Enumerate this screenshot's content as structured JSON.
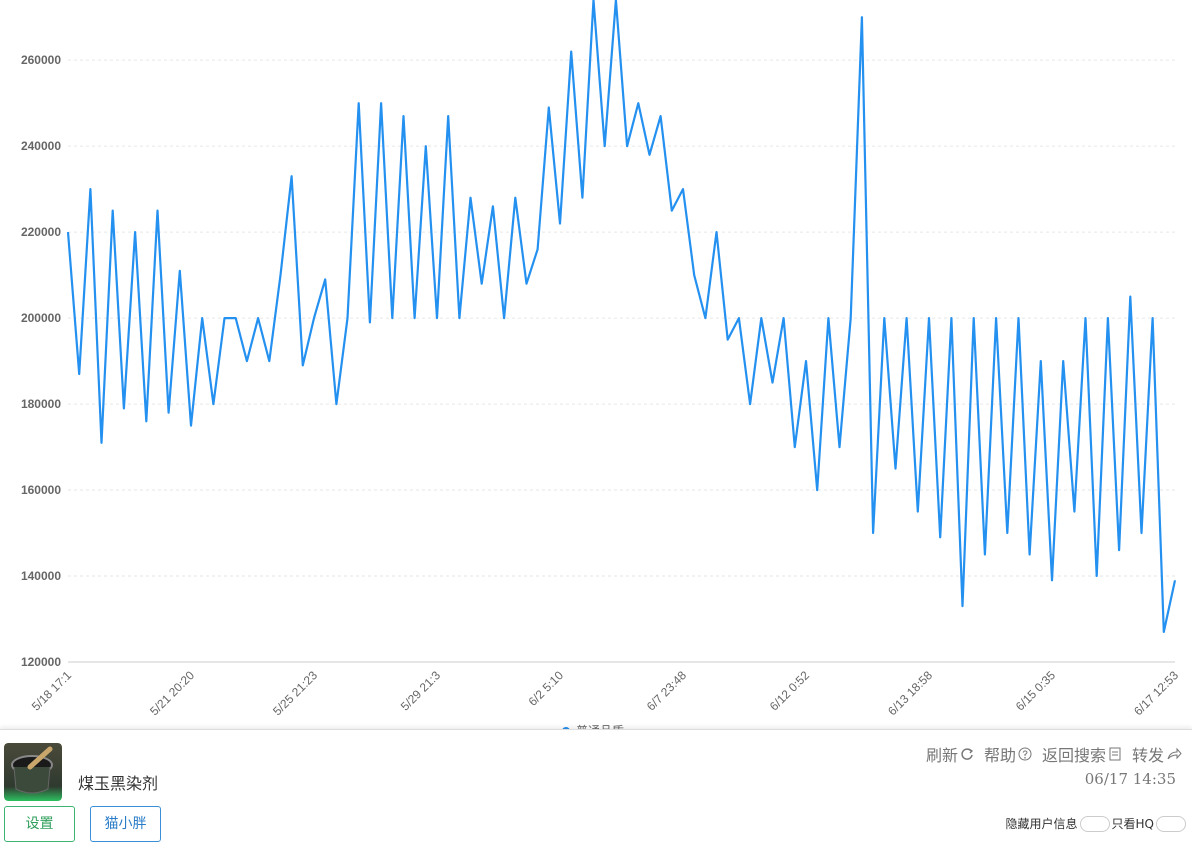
{
  "chart_data": {
    "type": "line",
    "categories": [
      "5/18 17:1",
      null,
      null,
      null,
      null,
      null,
      null,
      null,
      null,
      null,
      null,
      "5/21 20:20",
      null,
      null,
      null,
      null,
      null,
      null,
      null,
      null,
      null,
      null,
      "5/25 21:23",
      null,
      null,
      null,
      null,
      null,
      null,
      null,
      null,
      null,
      null,
      "5/29 21:3",
      null,
      null,
      null,
      null,
      null,
      null,
      null,
      null,
      null,
      null,
      "6/2 5:10",
      null,
      null,
      null,
      null,
      null,
      null,
      null,
      null,
      null,
      null,
      "6/7 23:48",
      null,
      null,
      null,
      null,
      null,
      null,
      null,
      null,
      null,
      null,
      "6/12 0:52",
      null,
      null,
      null,
      null,
      null,
      null,
      null,
      null,
      null,
      null,
      "6/13 18:58",
      null,
      null,
      null,
      null,
      null,
      null,
      null,
      null,
      null,
      null,
      "6/15 0:35",
      null,
      null,
      null,
      null,
      null,
      null,
      null,
      null,
      null,
      null,
      "6/17 12:53"
    ],
    "series": [
      {
        "name": "普通品质",
        "color": "#2490f0",
        "values": [
          220000,
          187000,
          230000,
          171000,
          225000,
          179000,
          220000,
          176000,
          225000,
          178000,
          211000,
          175000,
          200000,
          180000,
          200000,
          200000,
          190000,
          200000,
          190000,
          210000,
          233000,
          189000,
          200000,
          209000,
          180000,
          200000,
          250000,
          199000,
          250000,
          200000,
          247000,
          200000,
          240000,
          200000,
          247000,
          200000,
          228000,
          208000,
          226000,
          200000,
          228000,
          208000,
          216000,
          249000,
          222000,
          262000,
          228000,
          274000,
          240000,
          274000,
          240000,
          250000,
          238000,
          247000,
          225000,
          230000,
          210000,
          200000,
          220000,
          195000,
          200000,
          180000,
          200000,
          185000,
          200000,
          170000,
          190000,
          160000,
          200000,
          170000,
          200000,
          270000,
          150000,
          200000,
          165000,
          200000,
          155000,
          200000,
          149000,
          200000,
          133000,
          200000,
          145000,
          200000,
          150000,
          200000,
          145000,
          190000,
          139000,
          190000,
          155000,
          200000,
          140000,
          200000,
          146000,
          205000,
          150000,
          200000,
          127000,
          139000
        ]
      }
    ],
    "ylim": [
      120000,
      274000
    ],
    "yticks": [
      120000,
      140000,
      160000,
      180000,
      200000,
      220000,
      240000,
      260000
    ],
    "grid": true
  },
  "footer": {
    "item_name": "煤玉黑染剂",
    "buttons": [
      "设置",
      "猫小胖"
    ],
    "links": [
      "刷新",
      "帮助",
      "返回搜索",
      "转发"
    ],
    "timestamp": "06/17 14:35",
    "toggles": [
      "隐藏用户信息",
      "只看HQ"
    ]
  }
}
